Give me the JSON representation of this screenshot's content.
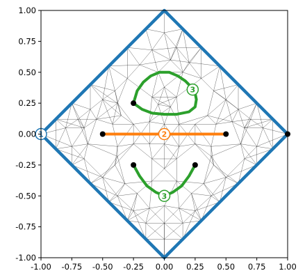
{
  "chart_data": {
    "type": "scatter",
    "xlim": [
      -1,
      1
    ],
    "ylim": [
      -1,
      1
    ],
    "x_ticks": [
      "-1.00",
      "-0.75",
      "-0.50",
      "-0.25",
      "0.00",
      "0.25",
      "0.50",
      "0.75",
      "1.00"
    ],
    "y_ticks": [
      "-1.00",
      "-0.75",
      "-0.50",
      "-0.25",
      "0.00",
      "0.25",
      "0.50",
      "0.75",
      "1.00"
    ],
    "grid": false,
    "mesh": {
      "color": "#000000",
      "nodes": [
        [
          0.0,
          1.0
        ],
        [
          0.0,
          -1.0
        ],
        [
          1.0,
          0.0
        ],
        [
          -1.0,
          0.0
        ],
        [
          0.15,
          0.85
        ],
        [
          0.3,
          0.7
        ],
        [
          0.45,
          0.55
        ],
        [
          0.6,
          0.4
        ],
        [
          0.75,
          0.25
        ],
        [
          0.88,
          0.12
        ],
        [
          -0.15,
          0.85
        ],
        [
          -0.3,
          0.7
        ],
        [
          -0.45,
          0.55
        ],
        [
          -0.6,
          0.4
        ],
        [
          -0.75,
          0.25
        ],
        [
          -0.88,
          0.12
        ],
        [
          0.15,
          -0.85
        ],
        [
          0.3,
          -0.7
        ],
        [
          0.45,
          -0.55
        ],
        [
          0.6,
          -0.4
        ],
        [
          0.75,
          -0.25
        ],
        [
          0.88,
          -0.12
        ],
        [
          -0.15,
          -0.85
        ],
        [
          -0.3,
          -0.7
        ],
        [
          -0.45,
          -0.55
        ],
        [
          -0.6,
          -0.4
        ],
        [
          -0.75,
          -0.25
        ],
        [
          -0.88,
          -0.12
        ],
        [
          0.0,
          0.82
        ],
        [
          0.1,
          0.7
        ],
        [
          -0.1,
          0.68
        ],
        [
          0.2,
          0.58
        ],
        [
          -0.2,
          0.56
        ],
        [
          0.05,
          0.6
        ],
        [
          -0.05,
          0.5
        ],
        [
          0.15,
          0.5
        ],
        [
          0.3,
          0.45
        ],
        [
          0.4,
          0.35
        ],
        [
          0.5,
          0.28
        ],
        [
          0.6,
          0.2
        ],
        [
          0.7,
          0.12
        ],
        [
          0.8,
          0.05
        ],
        [
          -0.3,
          0.45
        ],
        [
          -0.4,
          0.35
        ],
        [
          -0.5,
          0.28
        ],
        [
          -0.6,
          0.2
        ],
        [
          -0.7,
          0.12
        ],
        [
          -0.8,
          0.05
        ],
        [
          0.0,
          0.38
        ],
        [
          0.1,
          0.3
        ],
        [
          -0.1,
          0.3
        ],
        [
          0.05,
          0.22
        ],
        [
          -0.05,
          0.24
        ],
        [
          0.35,
          0.15
        ],
        [
          0.42,
          0.08
        ],
        [
          0.55,
          0.1
        ],
        [
          0.65,
          0.05
        ],
        [
          -0.35,
          0.15
        ],
        [
          -0.42,
          0.08
        ],
        [
          -0.38,
          0.25
        ],
        [
          -0.55,
          0.12
        ],
        [
          -0.65,
          0.05
        ],
        [
          -0.12,
          0.1
        ],
        [
          0.12,
          0.08
        ],
        [
          0.25,
          0.08
        ],
        [
          -0.25,
          0.08
        ],
        [
          0.0,
          0.08
        ],
        [
          -0.12,
          -0.08
        ],
        [
          0.12,
          -0.1
        ],
        [
          0.25,
          -0.08
        ],
        [
          -0.25,
          -0.08
        ],
        [
          0.0,
          -0.08
        ],
        [
          0.38,
          -0.1
        ],
        [
          -0.38,
          -0.1
        ],
        [
          0.62,
          -0.08
        ],
        [
          -0.62,
          -0.08
        ],
        [
          0.75,
          -0.1
        ],
        [
          -0.75,
          -0.1
        ],
        [
          0.4,
          -0.25
        ],
        [
          -0.4,
          -0.25
        ],
        [
          0.5,
          -0.35
        ],
        [
          -0.5,
          -0.35
        ],
        [
          0.65,
          -0.2
        ],
        [
          -0.65,
          -0.2
        ],
        [
          0.1,
          -0.2
        ],
        [
          -0.1,
          -0.2
        ],
        [
          0.0,
          -0.28
        ],
        [
          0.1,
          -0.38
        ],
        [
          -0.1,
          -0.38
        ],
        [
          0.0,
          -0.58
        ],
        [
          0.12,
          -0.6
        ],
        [
          -0.12,
          -0.6
        ],
        [
          0.22,
          -0.48
        ],
        [
          -0.22,
          -0.48
        ],
        [
          0.32,
          -0.4
        ],
        [
          -0.32,
          -0.4
        ],
        [
          0.38,
          -0.5
        ],
        [
          -0.38,
          -0.5
        ],
        [
          0.0,
          -0.72
        ],
        [
          0.15,
          -0.72
        ],
        [
          -0.15,
          -0.72
        ],
        [
          0.25,
          -0.62
        ],
        [
          -0.25,
          -0.62
        ],
        [
          0.0,
          -0.85
        ],
        [
          0.38,
          -0.18
        ],
        [
          -0.38,
          -0.18
        ]
      ]
    },
    "series": [
      {
        "kind": "boundary",
        "color": "#1f77b4",
        "x": [
          0,
          1,
          0,
          -1,
          0
        ],
        "y": [
          1,
          0,
          -1,
          0,
          1
        ],
        "marker_label": "1",
        "label_at": [
          -1.0,
          0.0
        ]
      },
      {
        "kind": "segment",
        "color": "#ff7f0e",
        "x": [
          -0.5,
          0.5
        ],
        "y": [
          0.0,
          0.0
        ],
        "marker_label": "2",
        "label_at": [
          0.0,
          0.0
        ]
      },
      {
        "kind": "closed-curve",
        "color": "#2ca02c",
        "x": [
          -0.25,
          -0.22,
          -0.17,
          -0.11,
          -0.04,
          0.04,
          0.11,
          0.17,
          0.22,
          0.25,
          0.26,
          0.25,
          0.2,
          0.1,
          0.0,
          -0.1,
          -0.18,
          -0.25
        ],
        "y": [
          0.25,
          0.35,
          0.42,
          0.47,
          0.5,
          0.5,
          0.47,
          0.43,
          0.38,
          0.33,
          0.28,
          0.22,
          0.18,
          0.16,
          0.16,
          0.17,
          0.2,
          0.25
        ],
        "marker_label": "3",
        "label_at": [
          0.23,
          0.36
        ]
      },
      {
        "kind": "curve",
        "color": "#2ca02c",
        "x": [
          -0.25,
          -0.2,
          -0.14,
          -0.07,
          0.0,
          0.07,
          0.14,
          0.2,
          0.25
        ],
        "y": [
          -0.25,
          -0.34,
          -0.42,
          -0.47,
          -0.5,
          -0.47,
          -0.42,
          -0.34,
          -0.25
        ],
        "marker_label": "3",
        "label_at": [
          0.0,
          -0.5
        ]
      }
    ],
    "points": {
      "color": "#000000",
      "x": [
        -0.5,
        0.5,
        1.0,
        -0.25,
        -0.25,
        0.25
      ],
      "y": [
        0.0,
        0.0,
        0.0,
        0.25,
        -0.25,
        -0.25
      ]
    }
  }
}
